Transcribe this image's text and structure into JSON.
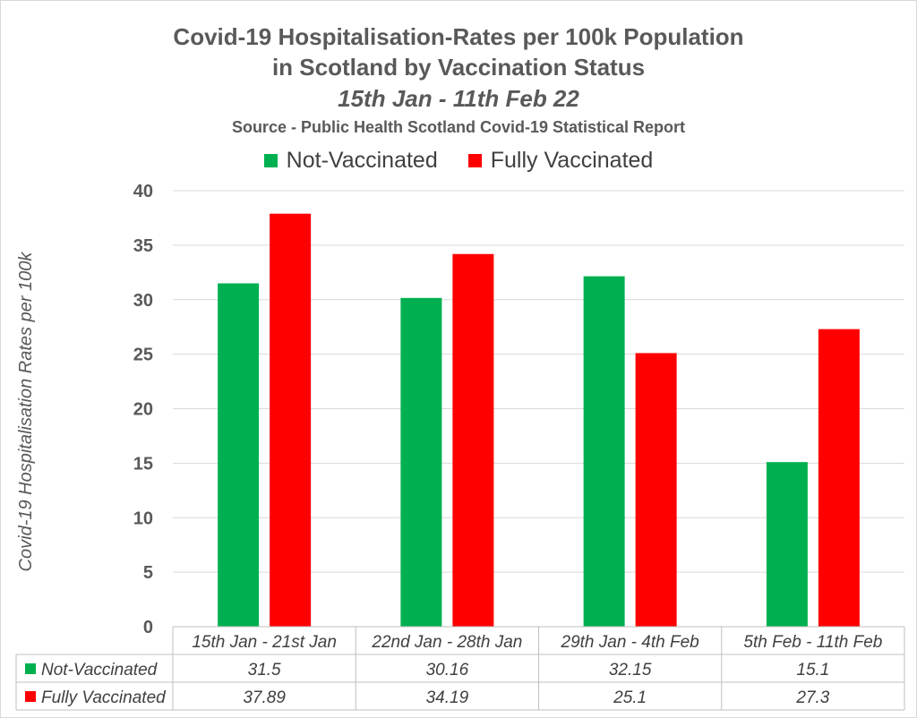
{
  "chart_data": {
    "type": "bar",
    "title_lines": [
      "Covid-19 Hospitalisation-Rates per 100k Population",
      "in Scotland by Vaccination Status"
    ],
    "subtitle": "15th Jan - 11th Feb 22",
    "source": "Source - Public Health Scotland Covid-19 Statistical Report",
    "ylabel": "Covid-19 Hospitalisation Rates per 100k",
    "xlabel": "",
    "ylim": [
      0,
      40
    ],
    "yticks": [
      0,
      5,
      10,
      15,
      20,
      25,
      30,
      35,
      40
    ],
    "grid": true,
    "legend_position": "top",
    "categories": [
      "15th Jan - 21st Jan",
      "22nd Jan - 28th Jan",
      "29th Jan - 4th Feb",
      "5th Feb - 11th Feb"
    ],
    "series": [
      {
        "name": "Not-Vaccinated",
        "color": "#00b050",
        "values": [
          31.5,
          30.16,
          32.15,
          15.1
        ],
        "table_values": [
          "31.5",
          "30.16",
          "32.15",
          "15.1"
        ]
      },
      {
        "name": "Fully Vaccinated",
        "color": "#ff0000",
        "values": [
          37.89,
          34.19,
          25.1,
          27.3
        ],
        "table_values": [
          "37.89",
          "34.19",
          "25.1",
          "27.3"
        ]
      }
    ],
    "data_table": true
  }
}
